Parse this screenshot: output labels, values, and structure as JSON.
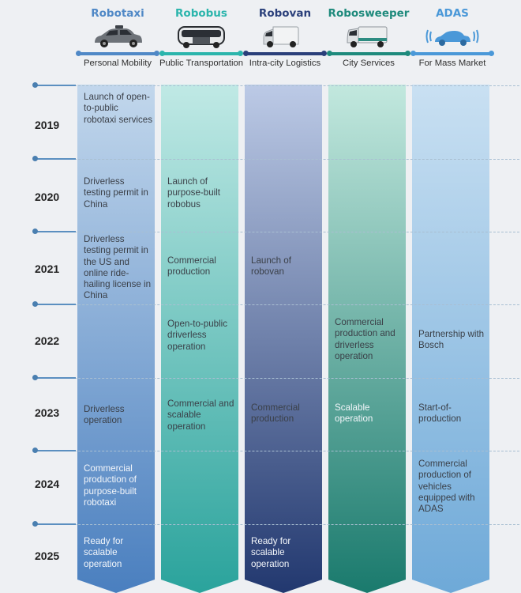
{
  "columns": [
    {
      "name": "Robotaxi",
      "subtitle": "Personal Mobility",
      "icon": "robotaxi-car-icon",
      "color": "#4f88c6",
      "gradient": [
        "#bcd3ea",
        "#4a7fbf"
      ]
    },
    {
      "name": "Robobus",
      "subtitle": "Public Transportation",
      "icon": "robobus-icon",
      "color": "#2bb5ac",
      "gradient": [
        "#bfe8e4",
        "#2aa39c"
      ]
    },
    {
      "name": "Robovan",
      "subtitle": "Intra-city Logistics",
      "icon": "robovan-icon",
      "color": "#2a3f7a",
      "gradient": [
        "#b9c8e4",
        "#23386f"
      ]
    },
    {
      "name": "Robosweeper",
      "subtitle": "City Services",
      "icon": "robosweeper-icon",
      "color": "#1e8a7c",
      "gradient": [
        "#bfe6dc",
        "#1a7a6d"
      ]
    },
    {
      "name": "ADAS",
      "subtitle": "For Mass Market",
      "icon": "adas-car-icon",
      "color": "#4a98d8",
      "gradient": [
        "#c6dff1",
        "#6aa7d6"
      ]
    }
  ],
  "years": [
    "2019",
    "2020",
    "2021",
    "2022",
    "2023",
    "2024",
    "2025"
  ],
  "cells": [
    [
      "Launch of open-to-public robotaxi services",
      "Driverless testing permit in China",
      "Driverless testing permit in the US and online ride-hailing license in China",
      "",
      "Driverless operation",
      "Commercial production of purpose-built robotaxi",
      "Ready for scalable operation"
    ],
    [
      "",
      "Launch of purpose-built robobus",
      "Commercial production",
      "Open-to-public driverless operation",
      "Commercial and scalable operation",
      "",
      ""
    ],
    [
      "",
      "",
      "Launch of robovan",
      "",
      "Commercial production",
      "",
      "Ready for scalable operation"
    ],
    [
      "",
      "",
      "",
      "Commercial production and driverless operation",
      "Scalable operation",
      "",
      ""
    ],
    [
      "",
      "",
      "",
      "Partnership with Bosch",
      "Start-of-production",
      "Commercial production of vehicles equipped with ADAS",
      ""
    ]
  ]
}
